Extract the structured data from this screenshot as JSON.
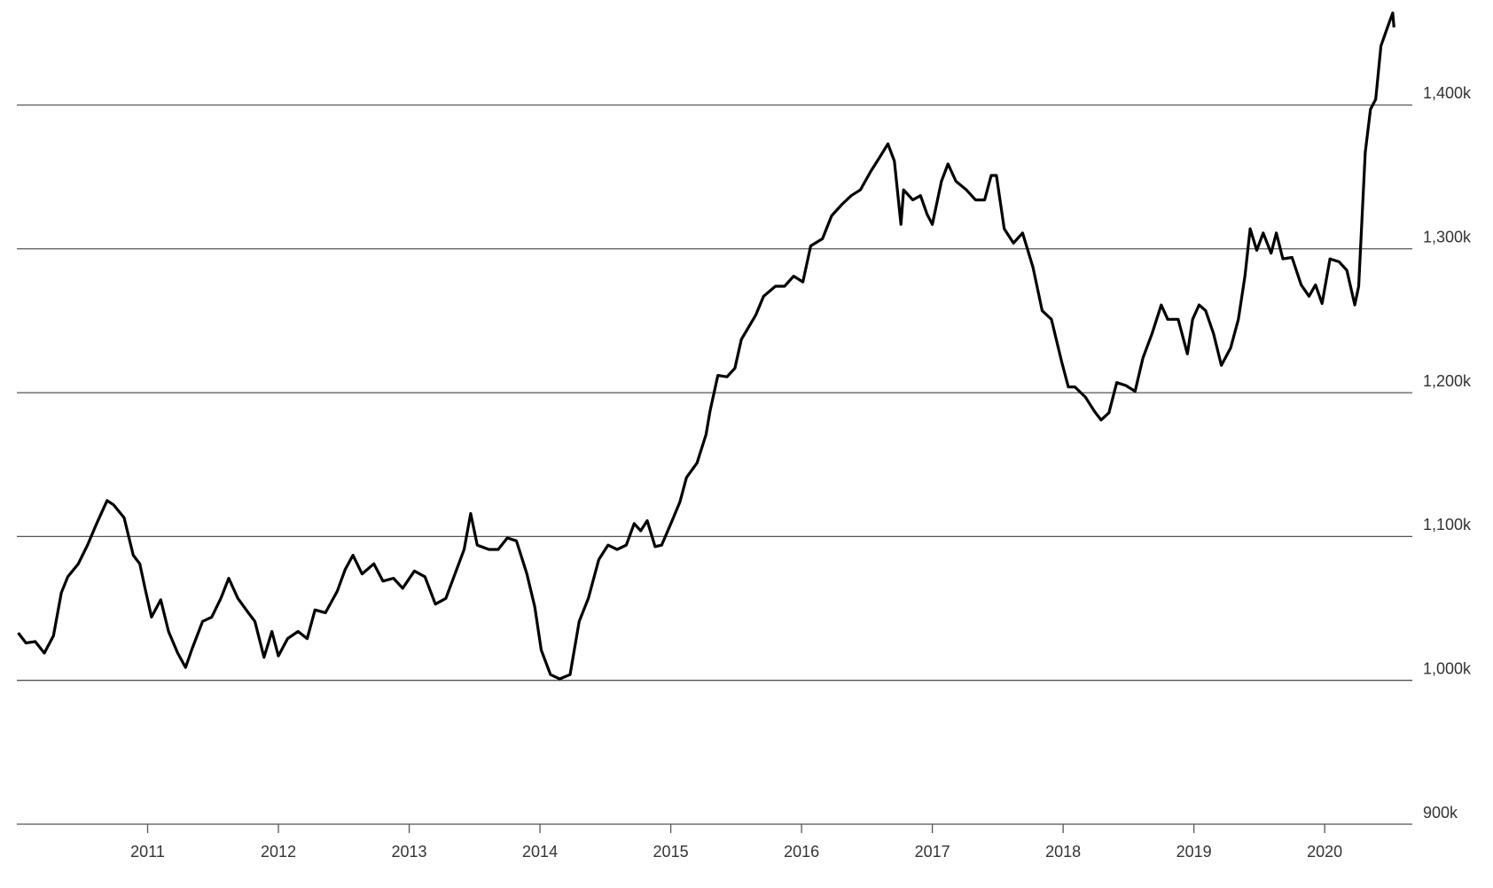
{
  "chart_data": {
    "type": "line",
    "color": "#000000",
    "grid": true,
    "xlim": [
      2010.0,
      2020.67
    ],
    "xticks": [
      2011,
      2012,
      2013,
      2014,
      2015,
      2016,
      2017,
      2018,
      2019,
      2020
    ],
    "ylim": [
      900,
      1473
    ],
    "yticks": [
      {
        "value": 900,
        "label": "900k"
      },
      {
        "value": 1000,
        "label": "1,000k"
      },
      {
        "value": 1100,
        "label": "1,100k"
      },
      {
        "value": 1200,
        "label": "1,200k"
      },
      {
        "value": 1300,
        "label": "1,300k"
      },
      {
        "value": 1400,
        "label": "1,400k"
      }
    ],
    "x": [
      2010.01,
      2010.07,
      2010.14,
      2010.21,
      2010.28,
      2010.34,
      2010.39,
      2010.47,
      2010.54,
      2010.61,
      2010.69,
      2010.74,
      2010.82,
      2010.89,
      2010.94,
      2010.98,
      2011.03,
      2011.1,
      2011.16,
      2011.23,
      2011.29,
      2011.34,
      2011.42,
      2011.49,
      2011.56,
      2011.62,
      2011.69,
      2011.77,
      2011.82,
      2011.89,
      2011.95,
      2012.0,
      2012.07,
      2012.15,
      2012.22,
      2012.28,
      2012.36,
      2012.45,
      2012.51,
      2012.57,
      2012.64,
      2012.73,
      2012.8,
      2012.88,
      2012.95,
      2013.04,
      2013.12,
      2013.2,
      2013.28,
      2013.35,
      2013.42,
      2013.47,
      2013.52,
      2013.61,
      2013.68,
      2013.75,
      2013.82,
      2013.9,
      2013.96,
      2014.01,
      2014.08,
      2014.15,
      2014.23,
      2014.3,
      2014.37,
      2014.45,
      2014.52,
      2014.59,
      2014.66,
      2014.72,
      2014.77,
      2014.82,
      2014.88,
      2014.93,
      2015.01,
      2015.07,
      2015.12,
      2015.2,
      2015.27,
      2015.3,
      2015.36,
      2015.43,
      2015.49,
      2015.54,
      2015.65,
      2015.71,
      2015.8,
      2015.87,
      2015.94,
      2016.01,
      2016.07,
      2016.16,
      2016.23,
      2016.31,
      2016.38,
      2016.45,
      2016.53,
      2016.6,
      2016.66,
      2016.71,
      2016.76,
      2016.78,
      2016.85,
      2016.91,
      2016.96,
      2017.0,
      2017.07,
      2017.12,
      2017.18,
      2017.26,
      2017.33,
      2017.4,
      2017.45,
      2017.49,
      2017.55,
      2017.62,
      2017.69,
      2017.77,
      2017.84,
      2017.91,
      2017.99,
      2018.04,
      2018.09,
      2018.17,
      2018.24,
      2018.29,
      2018.35,
      2018.41,
      2018.48,
      2018.55,
      2018.61,
      2018.68,
      2018.75,
      2018.8,
      2018.88,
      2018.95,
      2018.99,
      2019.04,
      2019.09,
      2019.15,
      2019.21,
      2019.28,
      2019.34,
      2019.39,
      2019.43,
      2019.48,
      2019.53,
      2019.59,
      2019.63,
      2019.68,
      2019.75,
      2019.82,
      2019.88,
      2019.93,
      2019.98,
      2020.04,
      2020.11,
      2020.17,
      2020.23,
      2020.26,
      2020.31,
      2020.35,
      2020.39,
      2020.43,
      2020.48,
      2020.52,
      2020.53
    ],
    "values": [
      1033,
      1026,
      1027,
      1019,
      1031,
      1061,
      1072,
      1081,
      1094,
      1109,
      1125,
      1122,
      1113,
      1087,
      1081,
      1064,
      1044,
      1056,
      1034,
      1019,
      1009,
      1022,
      1041,
      1044,
      1057,
      1071,
      1057,
      1047,
      1041,
      1016,
      1034,
      1017,
      1029,
      1034,
      1029,
      1049,
      1047,
      1062,
      1077,
      1087,
      1074,
      1081,
      1069,
      1071,
      1064,
      1076,
      1072,
      1053,
      1057,
      1074,
      1091,
      1116,
      1094,
      1091,
      1091,
      1099,
      1097,
      1074,
      1051,
      1021,
      1004,
      1001,
      1004,
      1041,
      1057,
      1084,
      1094,
      1091,
      1094,
      1109,
      1104,
      1111,
      1093,
      1094,
      1111,
      1124,
      1141,
      1151,
      1171,
      1187,
      1212,
      1211,
      1217,
      1237,
      1254,
      1267,
      1274,
      1274,
      1281,
      1277,
      1302,
      1307,
      1323,
      1331,
      1337,
      1341,
      1354,
      1364,
      1373,
      1361,
      1317,
      1341,
      1334,
      1337,
      1324,
      1317,
      1347,
      1359,
      1347,
      1341,
      1334,
      1334,
      1351,
      1351,
      1314,
      1304,
      1311,
      1287,
      1257,
      1251,
      1221,
      1204,
      1204,
      1197,
      1187,
      1181,
      1186,
      1207,
      1205,
      1201,
      1224,
      1241,
      1261,
      1251,
      1251,
      1227,
      1251,
      1261,
      1257,
      1241,
      1219,
      1231,
      1251,
      1281,
      1314,
      1299,
      1311,
      1297,
      1311,
      1293,
      1294,
      1275,
      1267,
      1275,
      1262,
      1293,
      1291,
      1285,
      1261,
      1274,
      1367,
      1397,
      1404,
      1441,
      1454,
      1464,
      1454
    ]
  }
}
